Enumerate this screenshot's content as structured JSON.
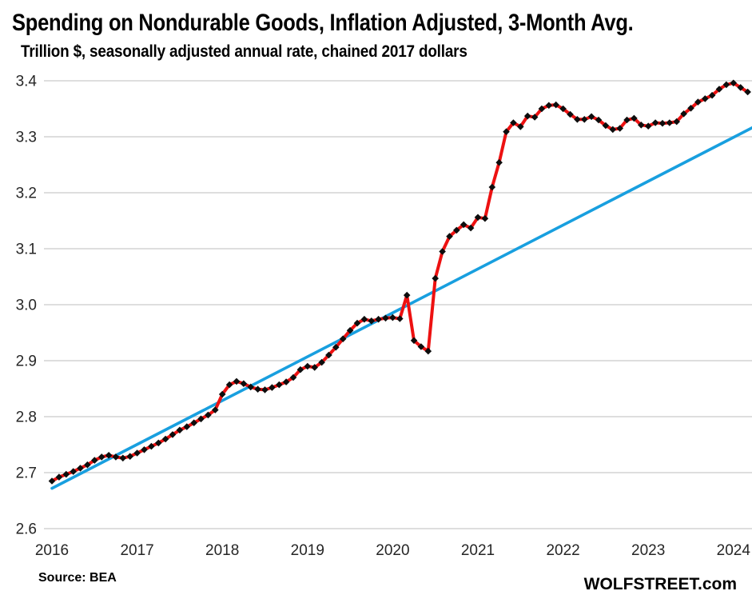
{
  "page": {
    "title": "Spending on Nondurable Goods, Inflation Adjusted, 3-Month Avg.",
    "subtitle": "Trillion $, seasonally adjusted annual rate, chained 2017 dollars",
    "source_note": "Source: BEA",
    "branding": "WOLFSTREET.com"
  },
  "chart_data": {
    "type": "line",
    "title": "Spending on Nondurable Goods, Inflation Adjusted, 3-Month Avg.",
    "subtitle": "Trillion $, seasonally adjusted annual rate, chained 2017 dollars",
    "xlabel": "",
    "ylabel": "Trillion $, seasonally adjusted annual rate, chained 2017 dollars",
    "x_axis": {
      "tick_labels": [
        "2016",
        "2017",
        "2018",
        "2019",
        "2020",
        "2021",
        "2022",
        "2023",
        "2024"
      ],
      "start": "2016-01",
      "end": "2024-03",
      "frequency": "monthly"
    },
    "y_axis": {
      "ticks": [
        "2.6",
        "2.7",
        "2.8",
        "2.9",
        "3.0",
        "3.1",
        "3.2",
        "3.3",
        "3.4"
      ],
      "ylim": [
        2.6,
        3.4
      ]
    },
    "grid": {
      "horizontal": true,
      "vertical": false,
      "color": "#d9d9d9"
    },
    "legend": "none",
    "series": [
      {
        "name": "Real spending on nondurable goods, 3-month moving average",
        "style": "line-with-markers",
        "color": "#ed1111",
        "marker": "diamond",
        "marker_color": "#0d0d0d",
        "values": [
          2.685,
          2.692,
          2.697,
          2.702,
          2.708,
          2.714,
          2.722,
          2.728,
          2.731,
          2.728,
          2.726,
          2.729,
          2.735,
          2.741,
          2.747,
          2.753,
          2.76,
          2.768,
          2.776,
          2.782,
          2.789,
          2.796,
          2.803,
          2.812,
          2.84,
          2.857,
          2.863,
          2.859,
          2.853,
          2.849,
          2.848,
          2.852,
          2.857,
          2.862,
          2.87,
          2.884,
          2.89,
          2.888,
          2.897,
          2.91,
          2.924,
          2.939,
          2.954,
          2.967,
          2.974,
          2.971,
          2.974,
          2.976,
          2.977,
          2.975,
          3.017,
          2.936,
          2.925,
          2.917,
          3.047,
          3.095,
          3.122,
          3.133,
          3.143,
          3.137,
          3.156,
          3.154,
          3.21,
          3.254,
          3.309,
          3.325,
          3.318,
          3.337,
          3.335,
          3.35,
          3.356,
          3.357,
          3.35,
          3.34,
          3.331,
          3.331,
          3.336,
          3.33,
          3.32,
          3.313,
          3.315,
          3.33,
          3.333,
          3.321,
          3.319,
          3.325,
          3.324,
          3.325,
          3.327,
          3.341,
          3.351,
          3.362,
          3.368,
          3.374,
          3.385,
          3.393,
          3.396,
          3.388,
          3.38
        ]
      },
      {
        "name": "Linear trendline",
        "style": "straight-line",
        "color": "#189fdf",
        "start_value": 2.672,
        "end_value": 3.316
      }
    ],
    "source_note": "Source: BEA",
    "branding": "WOLFSTREET.com"
  }
}
